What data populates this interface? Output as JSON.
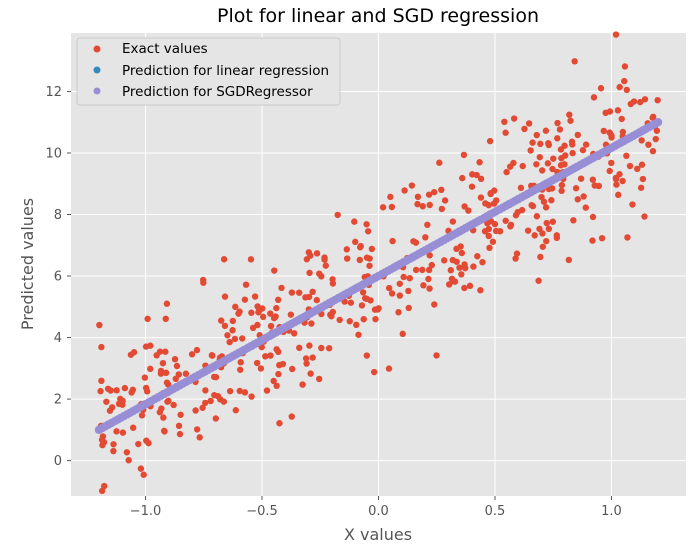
{
  "chart_data": {
    "type": "scatter",
    "title": "Plot for linear and SGD regression",
    "xlabel": "X values",
    "ylabel": "Predicted values",
    "xlim": [
      -1.32,
      1.32
    ],
    "ylim": [
      -1.15,
      13.9
    ],
    "xticks": [
      -1.0,
      -0.5,
      0.0,
      0.5,
      1.0
    ],
    "xtick_labels": [
      "−1.0",
      "−0.5",
      "0.0",
      "0.5",
      "1.0"
    ],
    "yticks": [
      0,
      2,
      4,
      6,
      8,
      10,
      12
    ],
    "ytick_labels": [
      "0",
      "2",
      "4",
      "6",
      "8",
      "10",
      "12"
    ],
    "grid": true,
    "legend_position": "upper-left",
    "series": [
      {
        "name": "Exact values",
        "color": "#E24A33",
        "marker": "circle",
        "x_range": [
          -1.2,
          1.2
        ],
        "n_points": 500,
        "trend_intercept": 6.0,
        "trend_slope": 4.17,
        "noise_sd": 1.25,
        "points": []
      },
      {
        "name": "Prediction for linear regression",
        "color": "#348ABD",
        "marker": "circle",
        "x": [
          -1.2,
          1.2
        ],
        "y": [
          1.0,
          11.0
        ]
      },
      {
        "name": "Prediction for SGDRegressor",
        "color": "#988ED5",
        "marker": "circle",
        "x": [
          -1.2,
          1.2
        ],
        "y": [
          1.0,
          11.0
        ]
      }
    ]
  }
}
